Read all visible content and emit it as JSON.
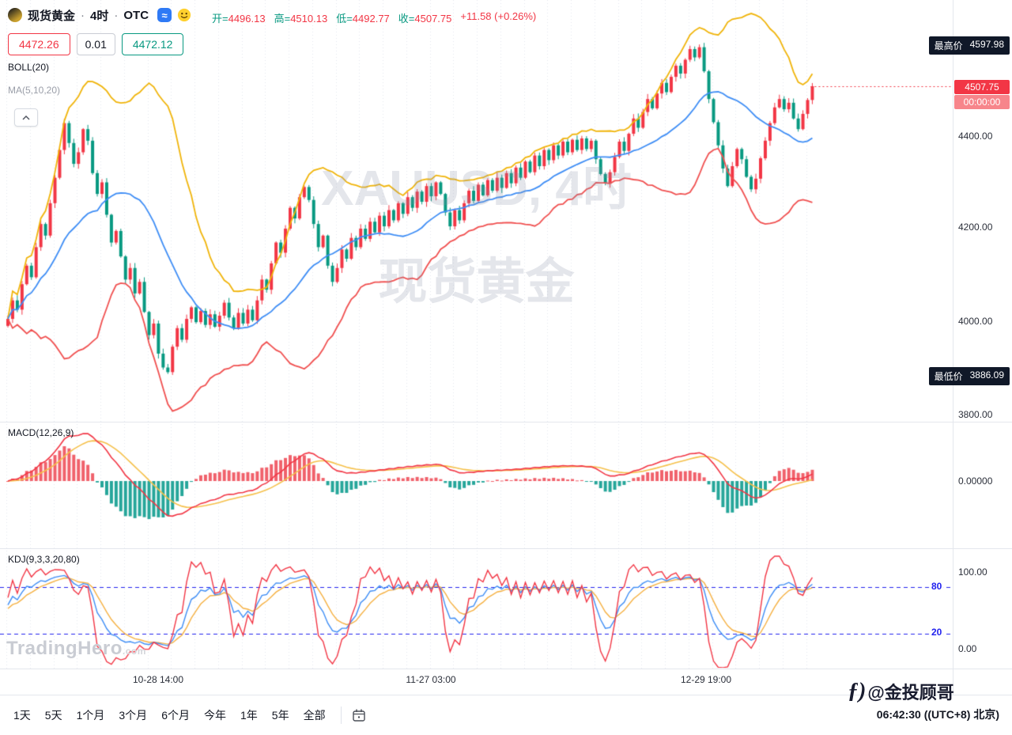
{
  "header": {
    "symbol": "现货黄金",
    "separator": "·",
    "interval": "4时",
    "market": "OTC",
    "wave_icon": "≈",
    "ohlc": {
      "o_label": "开=",
      "o": "4496.13",
      "h_label": "高=",
      "h": "4510.13",
      "l_label": "低=",
      "l": "4492.77",
      "c_label": "收=",
      "c": "4507.75",
      "change": "+11.58 (+0.26%)"
    },
    "bid": "4472.26",
    "spread": "0.01",
    "ask": "4472.12",
    "boll_label": "BOLL(20)",
    "ma_label": "MA(5,10,20)"
  },
  "axis": {
    "high_label": "最高价",
    "high_value": "4597.98",
    "last_price": "4507.75",
    "countdown": "00:00:00",
    "price_ticks": [
      "4400.00",
      "4200.00",
      "4000.00",
      "3800.00"
    ],
    "low_label": "最低价",
    "low_value": "3886.09",
    "macd_tick": "0.00000",
    "kdj_top": "100.00",
    "kdj_upper": "80",
    "kdj_lower": "20",
    "kdj_bottom": "0.00"
  },
  "watermark": {
    "line1": "XAUUSD, 4时",
    "line2": "现货黄金"
  },
  "panels": {
    "macd_label": "MACD(12,26,9)",
    "kdj_label": "KDJ(9,3,3,20,80)"
  },
  "time_axis": {
    "labels": [
      "10-28 14:00",
      "11-27 03:00",
      "12-29 19:00"
    ]
  },
  "toolbar": {
    "ranges": [
      "1天",
      "5天",
      "1个月",
      "3个月",
      "6个月",
      "今年",
      "1年",
      "5年",
      "全部"
    ]
  },
  "footer": {
    "clock": "06:42:30",
    "timezone": "((UTC+8) 北京)"
  },
  "branding": {
    "watermark_name": "TradingHero",
    "watermark_tld": ".com",
    "credit_logo": "ƒ)",
    "credit": "@金投顾哥"
  },
  "colors": {
    "up": "#f23645",
    "down": "#089981",
    "boll_upper": "#f0b40a",
    "boll_mid": "#3e8df5",
    "boll_lower": "#f05050",
    "macd_dif": "#f23645",
    "macd_dea": "#f5c04a",
    "macd_hist_pos": "#f0616b",
    "macd_hist_neg": "#26a69a",
    "kdj_k": "#3e8df5",
    "kdj_d": "#f5b041",
    "kdj_j": "#f23645",
    "kdj_band": "#2222ee",
    "last_price": "#f23645",
    "grid": "#e4e7ee"
  },
  "chart_data": {
    "type": "candlestick",
    "symbol": "XAUUSD",
    "interval": "4h",
    "title_watermark": "XAUUSD, 4时 现货黄金",
    "open": 4496.13,
    "high": 4510.13,
    "low": 4492.77,
    "close": 4507.75,
    "change": 11.58,
    "change_pct": 0.26,
    "session_high": 4597.98,
    "session_low": 3886.09,
    "last_price": 4507.75,
    "high_index": 147,
    "low_index": 34,
    "price_axis_ticks": [
      4400,
      4200,
      4000,
      3800
    ],
    "boll_period": 20,
    "macd_params": [
      12,
      26,
      9
    ],
    "kdj_params": [
      9,
      3,
      3
    ],
    "kdj_upper_band": 80,
    "kdj_lower_band": 20,
    "time_ticks": [
      "10-28 14:00",
      "11-27 03:00",
      "12-29 19:00"
    ],
    "closes": [
      4005,
      4045,
      4025,
      4080,
      4120,
      4095,
      4160,
      4210,
      4185,
      4255,
      4310,
      4370,
      4428,
      4385,
      4340,
      4365,
      4415,
      4390,
      4320,
      4275,
      4300,
      4230,
      4170,
      4195,
      4140,
      4090,
      4115,
      4060,
      4085,
      4020,
      3970,
      3995,
      3930,
      3900,
      3890,
      3945,
      3985,
      3960,
      4005,
      4030,
      3998,
      4022,
      3992,
      4015,
      3988,
      4012,
      4040,
      4008,
      3985,
      4018,
      3995,
      4025,
      4002,
      4045,
      4090,
      4068,
      4125,
      4170,
      4148,
      4200,
      4245,
      4222,
      4268,
      4290,
      4262,
      4210,
      4160,
      4185,
      4120,
      4085,
      4115,
      4155,
      4135,
      4180,
      4160,
      4200,
      4178,
      4215,
      4192,
      4228,
      4205,
      4240,
      4218,
      4255,
      4232,
      4268,
      4245,
      4280,
      4258,
      4292,
      4270,
      4300,
      4275,
      4235,
      4205,
      4240,
      4218,
      4255,
      4282,
      4260,
      4295,
      4272,
      4305,
      4282,
      4310,
      4288,
      4320,
      4298,
      4332,
      4310,
      4345,
      4322,
      4358,
      4335,
      4370,
      4348,
      4380,
      4358,
      4388,
      4365,
      4392,
      4370,
      4395,
      4372,
      4390,
      4350,
      4318,
      4298,
      4322,
      4355,
      4388,
      4368,
      4405,
      4438,
      4418,
      4452,
      4480,
      4460,
      4492,
      4515,
      4495,
      4528,
      4552,
      4535,
      4565,
      4588,
      4570,
      4592,
      4540,
      4480,
      4430,
      4380,
      4330,
      4292,
      4335,
      4372,
      4350,
      4312,
      4285,
      4308,
      4352,
      4390,
      4428,
      4462,
      4480,
      4458,
      4472,
      4438,
      4415,
      4448,
      4478,
      4507.75
    ]
  }
}
